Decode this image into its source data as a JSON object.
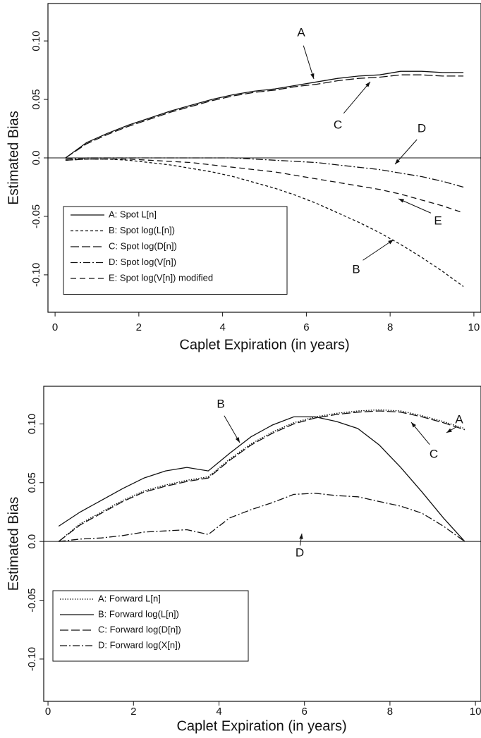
{
  "chart_data": [
    {
      "type": "line",
      "xlabel": "Caplet Expiration (in years)",
      "ylabel": "Estimated Bias",
      "x": [
        0.25,
        0.75,
        1.25,
        1.75,
        2.25,
        2.75,
        3.25,
        3.75,
        4.25,
        4.75,
        5.25,
        5.75,
        6.25,
        6.75,
        7.25,
        7.75,
        8.25,
        8.75,
        9.25,
        9.75
      ],
      "series": [
        {
          "name": "A: Spot L[n]",
          "color": "#111111",
          "style": "solid",
          "values": [
            0,
            0.013,
            0.021,
            0.028,
            0.034,
            0.04,
            0.045,
            0.05,
            0.054,
            0.057,
            0.059,
            0.062,
            0.065,
            0.068,
            0.07,
            0.071,
            0.074,
            0.074,
            0.073,
            0.073
          ]
        },
        {
          "name": "B: Spot log(L[n])",
          "color": "#111111",
          "style": "short-dash",
          "values": [
            -0.002,
            -0.001,
            -0.001,
            -0.002,
            -0.004,
            -0.006,
            -0.009,
            -0.012,
            -0.016,
            -0.021,
            -0.026,
            -0.032,
            -0.039,
            -0.047,
            -0.055,
            -0.064,
            -0.074,
            -0.085,
            -0.097,
            -0.11
          ]
        },
        {
          "name": "C: Spot log(D[n])",
          "color": "#111111",
          "style": "long-dash",
          "values": [
            0,
            0.012,
            0.02,
            0.027,
            0.033,
            0.039,
            0.044,
            0.049,
            0.053,
            0.056,
            0.058,
            0.061,
            0.063,
            0.066,
            0.068,
            0.069,
            0.071,
            0.071,
            0.07,
            0.07
          ]
        },
        {
          "name": "D: Spot log(V[n])",
          "color": "#111111",
          "style": "dash-dot",
          "values": [
            -0.001,
            0,
            0,
            0,
            0,
            0,
            0,
            0,
            0,
            -0.001,
            -0.002,
            -0.003,
            -0.004,
            -0.006,
            -0.008,
            -0.01,
            -0.013,
            -0.016,
            -0.02,
            -0.025
          ]
        },
        {
          "name": "E: Spot log(V[n]) modified",
          "color": "#111111",
          "style": "dash",
          "values": [
            -0.002,
            -0.001,
            -0.001,
            -0.001,
            -0.002,
            -0.003,
            -0.004,
            -0.006,
            -0.008,
            -0.01,
            -0.012,
            -0.015,
            -0.018,
            -0.021,
            -0.024,
            -0.027,
            -0.031,
            -0.036,
            -0.041,
            -0.047
          ]
        }
      ],
      "xlim": [
        -0.17,
        10.17
      ],
      "xticks": [
        0,
        2,
        4,
        6,
        8,
        10
      ],
      "ylim": [
        -0.132,
        0.132
      ],
      "yticks": [
        {
          "value": -0.1,
          "label": "-0.10"
        },
        -0.05,
        {
          "value": 0,
          "label": "0.0"
        },
        0.05,
        {
          "value": 0.1,
          "label": "0.10"
        }
      ],
      "legend": "lower left",
      "annotations": [
        {
          "text": "A"
        },
        {
          "text": "C"
        },
        {
          "text": "D"
        },
        {
          "text": "E"
        },
        {
          "text": "B"
        }
      ]
    },
    {
      "type": "line",
      "xlabel": "Caplet Expiration (in years)",
      "ylabel": "Estimated Bias",
      "x": [
        0.25,
        0.75,
        1.25,
        1.75,
        2.25,
        2.75,
        3.25,
        3.75,
        4.25,
        4.75,
        5.25,
        5.75,
        6.25,
        6.75,
        7.25,
        7.75,
        8.25,
        8.75,
        9.25,
        9.75
      ],
      "series": [
        {
          "name": "A: Forward L[n]",
          "color": "#111111",
          "style": "dotted",
          "values": [
            0,
            0.015,
            0.025,
            0.035,
            0.043,
            0.048,
            0.052,
            0.055,
            0.07,
            0.083,
            0.093,
            0.101,
            0.106,
            0.109,
            0.111,
            0.112,
            0.111,
            0.107,
            0.102,
            0.096
          ]
        },
        {
          "name": "B: Forward log(L[n])",
          "color": "#111111",
          "style": "solid",
          "values": [
            0.013,
            0.025,
            0.035,
            0.045,
            0.054,
            0.06,
            0.063,
            0.06,
            0.075,
            0.089,
            0.099,
            0.106,
            0.106,
            0.102,
            0.096,
            0.082,
            0.063,
            0.042,
            0.02,
            0
          ]
        },
        {
          "name": "C: Forward log(D[n])",
          "color": "#111111",
          "style": "long-dash",
          "values": [
            0,
            0.014,
            0.024,
            0.034,
            0.042,
            0.047,
            0.051,
            0.054,
            0.069,
            0.082,
            0.092,
            0.1,
            0.105,
            0.108,
            0.11,
            0.111,
            0.11,
            0.106,
            0.101,
            0.095
          ]
        },
        {
          "name": "D: Forward log(X[n])",
          "color": "#111111",
          "style": "dash-dot",
          "values": [
            0,
            0.002,
            0.003,
            0.005,
            0.008,
            0.009,
            0.01,
            0.006,
            0.02,
            0.027,
            0.033,
            0.04,
            0.041,
            0.039,
            0.038,
            0.034,
            0.03,
            0.024,
            0.013,
            0
          ]
        }
      ],
      "xlim": [
        -0.1,
        10.13
      ],
      "xticks": [
        0,
        2,
        4,
        6,
        8,
        10
      ],
      "ylim": [
        -0.136,
        0.132
      ],
      "yticks": [
        {
          "value": -0.1,
          "label": "-0.10"
        },
        -0.05,
        {
          "value": 0,
          "label": "0.0"
        },
        0.05,
        {
          "value": 0.1,
          "label": "0.10"
        }
      ],
      "legend": "lower left",
      "annotations": [
        {
          "text": "B"
        },
        {
          "text": "A"
        },
        {
          "text": "C"
        },
        {
          "text": "D"
        }
      ]
    }
  ]
}
